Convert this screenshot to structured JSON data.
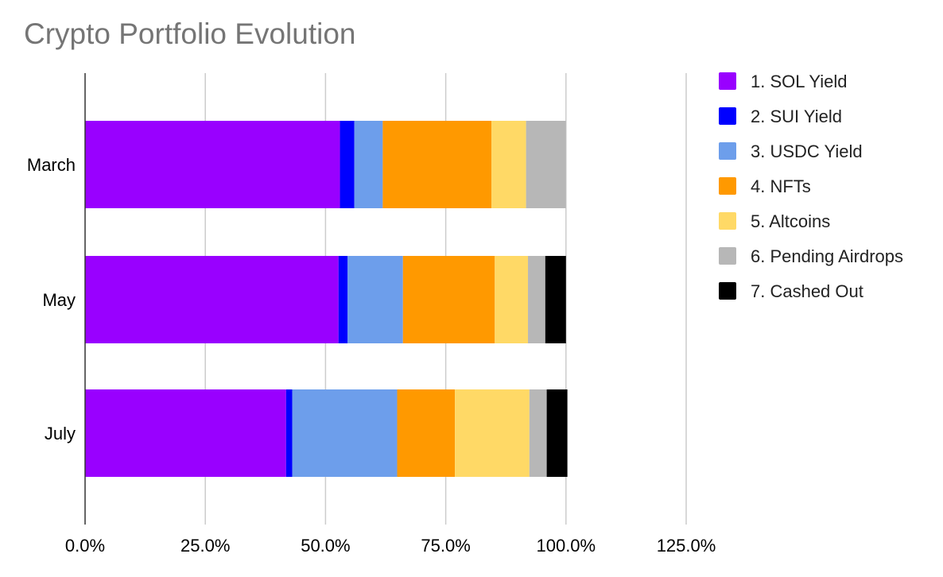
{
  "chart_data": {
    "type": "bar",
    "orientation": "horizontal",
    "stacked": true,
    "title": "Crypto Portfolio Evolution",
    "xlabel": "",
    "ylabel": "",
    "categories": [
      "March",
      "May",
      "July"
    ],
    "x_ticks": [
      "0.0%",
      "25.0%",
      "50.0%",
      "75.0%",
      "100.0%",
      "125.0%"
    ],
    "xlim": [
      0,
      125
    ],
    "grid": "vertical",
    "legend_position": "right",
    "series": [
      {
        "name": "1. SOL Yield",
        "color": "#9900ff",
        "values": [
          53.0,
          52.7,
          41.8
        ]
      },
      {
        "name": "2. SUI Yield",
        "color": "#0000ff",
        "values": [
          3.0,
          1.9,
          1.3
        ]
      },
      {
        "name": "3. USDC Yield",
        "color": "#6d9eeb",
        "values": [
          5.9,
          11.5,
          21.8
        ]
      },
      {
        "name": "4. NFTs",
        "color": "#ff9900",
        "values": [
          22.6,
          19.1,
          12.0
        ]
      },
      {
        "name": "5. Altcoins",
        "color": "#ffd966",
        "values": [
          7.2,
          6.9,
          15.5
        ]
      },
      {
        "name": "6. Pending Airdrops",
        "color": "#b7b7b7",
        "values": [
          8.3,
          3.6,
          3.6
        ]
      },
      {
        "name": "7. Cashed Out",
        "color": "#000000",
        "values": [
          0,
          4.3,
          4.3
        ]
      }
    ]
  }
}
